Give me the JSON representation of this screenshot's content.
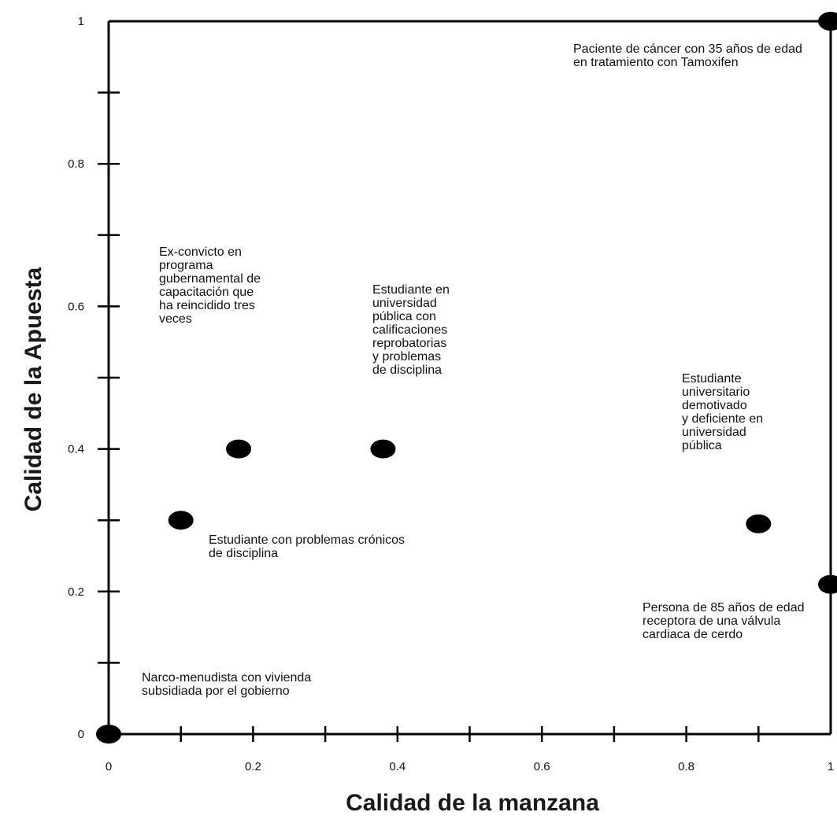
{
  "chart_data": {
    "type": "scatter",
    "title": "",
    "xlabel": "Calidad de la manzana",
    "ylabel": "Calidad de la Apuesta",
    "xlim": [
      0,
      1
    ],
    "ylim": [
      0,
      1
    ],
    "grid": false,
    "x_tick_labels": [
      "0",
      "0.2",
      "0.4",
      "0.6",
      "0.8",
      "1"
    ],
    "y_tick_labels": [
      "0",
      "0.2",
      "0.4",
      "0.6",
      "0.8",
      "1"
    ],
    "points": [
      {
        "x": 0.0,
        "y": 0.0,
        "label": "Narco-menudista con vivienda subsidiada por el gobierno"
      },
      {
        "x": 0.1,
        "y": 0.3,
        "label": "Estudiante con problemas crónicos de disciplina"
      },
      {
        "x": 0.18,
        "y": 0.4,
        "label": "Ex-convicto en programa gubernamental de capacitación que ha reincidido tres veces"
      },
      {
        "x": 0.38,
        "y": 0.4,
        "label": "Estudiante en universidad pública con calificaciones reprobatorias y problemas de disciplina"
      },
      {
        "x": 0.9,
        "y": 0.295,
        "label": "Estudiante universitario demotivado y deficiente en universidad pública"
      },
      {
        "x": 1.0,
        "y": 0.21,
        "label": "Persona de 85 años de edad receptora de una válvula cardiaca de cerdo"
      },
      {
        "x": 1.0,
        "y": 1.0,
        "label": "Paciente de cáncer con 35 años de edad en tratamiento con Tamoxifen"
      }
    ],
    "annotations": [
      {
        "lines": [
          "Narco-menudista con vivienda",
          "subsidiada por el gobierno"
        ]
      },
      {
        "lines": [
          "Estudiante con problemas crónicos",
          "de disciplina"
        ]
      },
      {
        "lines": [
          "Ex-convicto en",
          "programa",
          "gubernamental de",
          "capacitación que",
          "ha reincidido tres",
          "veces"
        ]
      },
      {
        "lines": [
          "Estudiante en",
          "universidad",
          "pública con",
          "calificaciones",
          "reprobatorias",
          "y problemas",
          "de disciplina"
        ]
      },
      {
        "lines": [
          "Estudiante",
          "universitario",
          "demotivado",
          "y deficiente en",
          "universidad",
          "pública"
        ]
      },
      {
        "lines": [
          "Persona de 85 años de edad",
          "receptora de una válvula",
          "cardiaca de cerdo"
        ]
      },
      {
        "lines": [
          "Paciente de cáncer con 35 años de edad",
          "en tratamiento con Tamoxifen"
        ]
      }
    ],
    "colors": {
      "axis": "#000000",
      "point": "#000000",
      "text": "#111111"
    }
  }
}
